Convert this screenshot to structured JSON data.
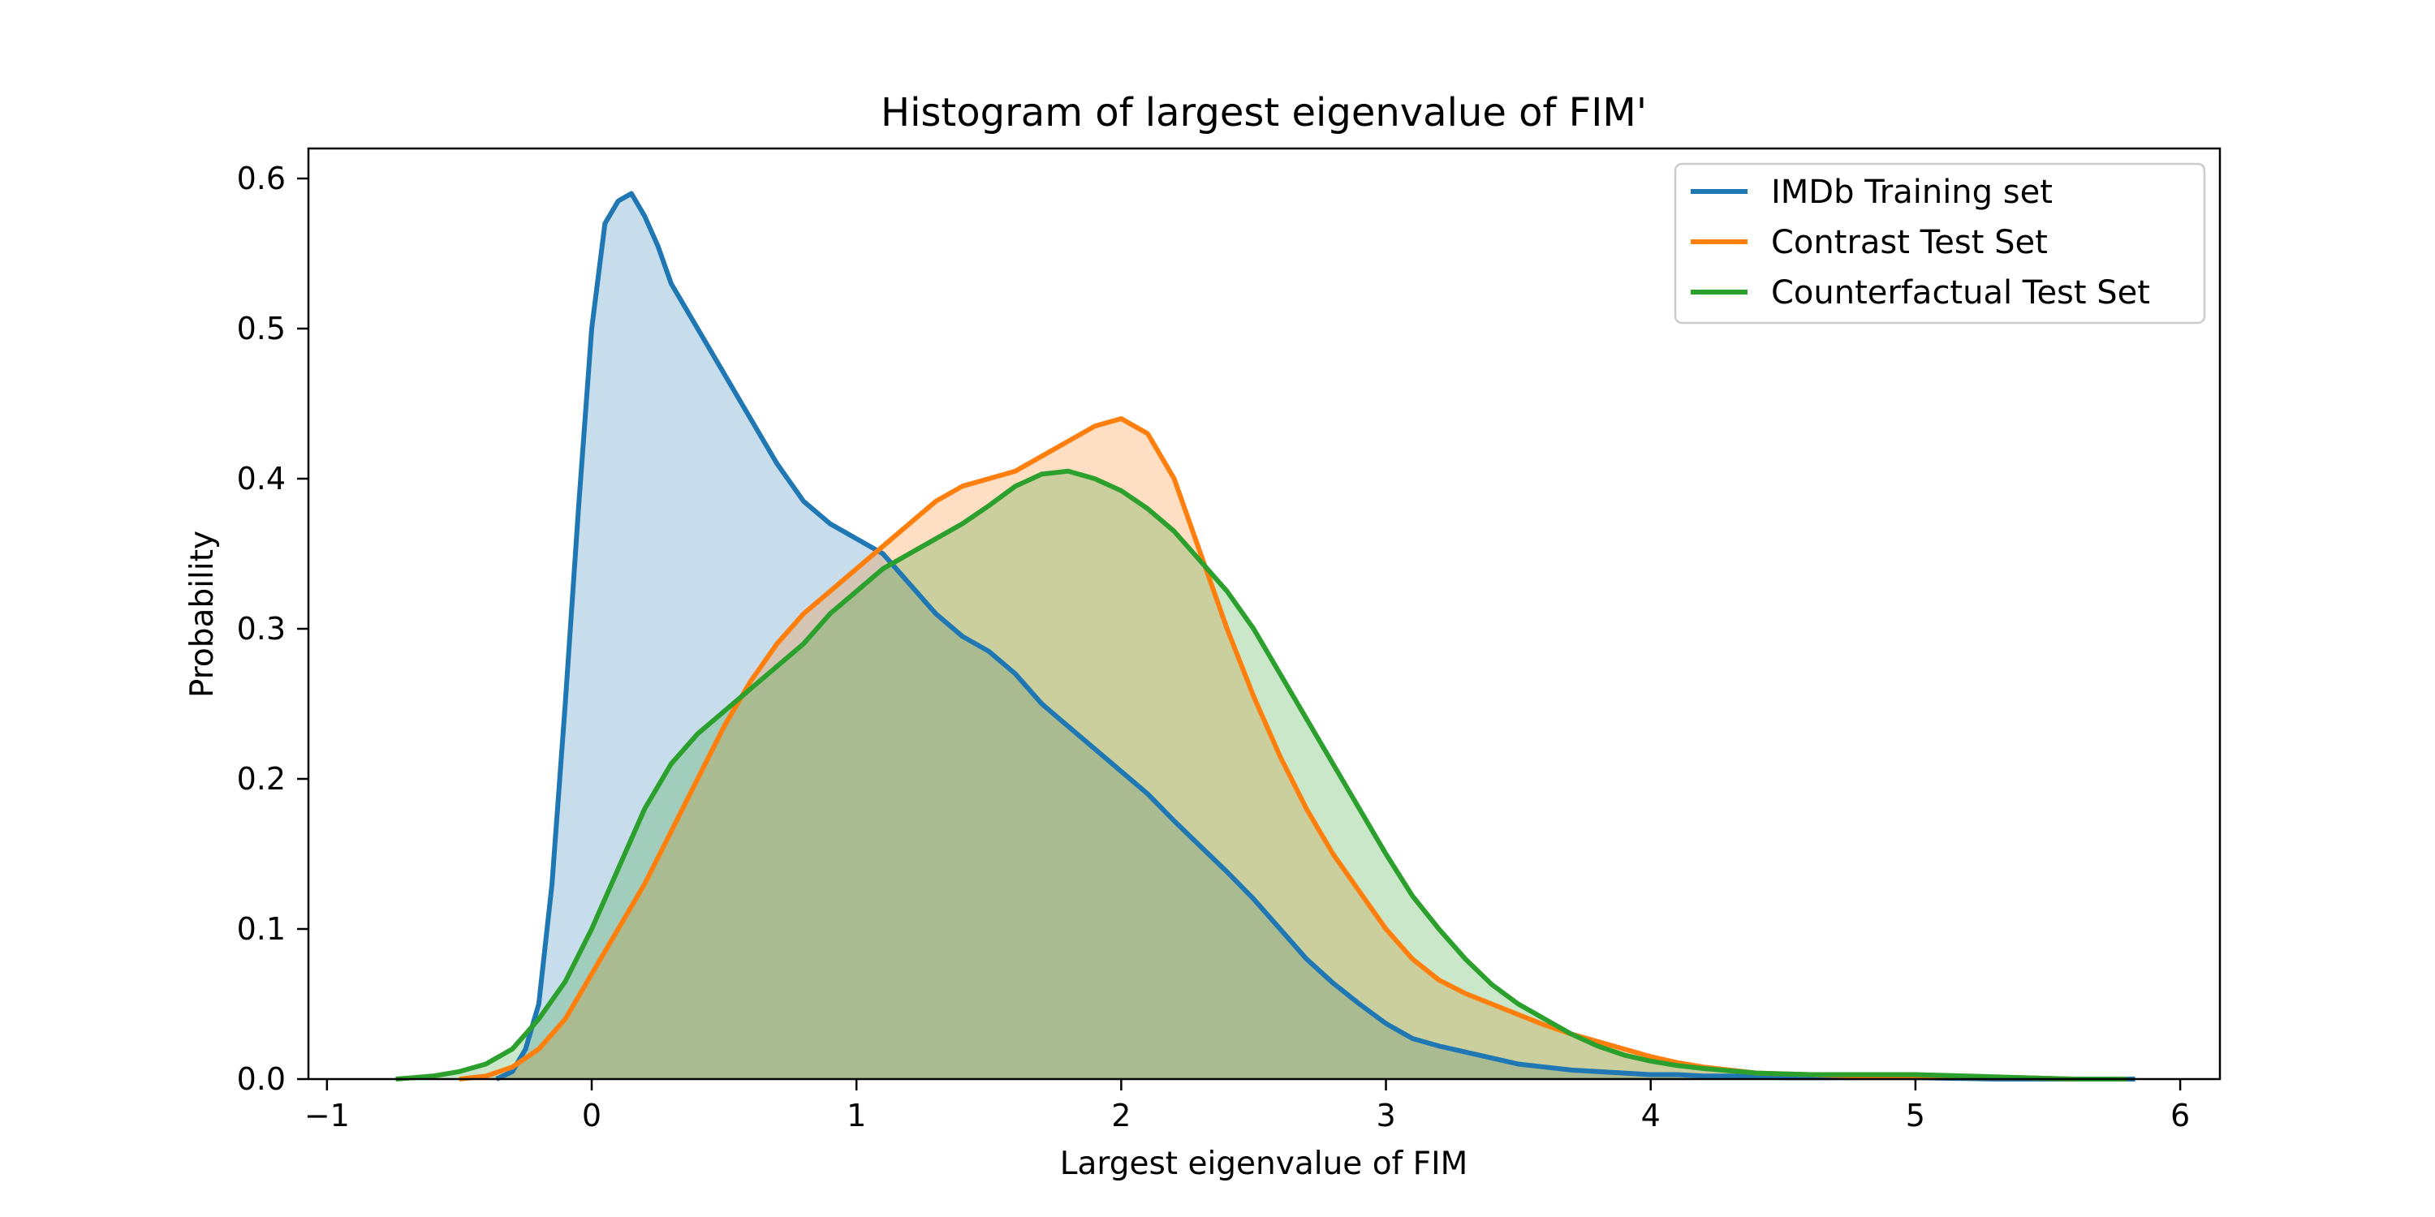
{
  "chart_data": {
    "type": "area",
    "title": "Histogram of largest eigenvalue of FIM'",
    "xlabel": "Largest eigenvalue of FIM",
    "ylabel": "Probability",
    "xlim": [
      -1.07,
      6.15
    ],
    "ylim": [
      0,
      0.62
    ],
    "xticks": [
      -1,
      0,
      1,
      2,
      3,
      4,
      5,
      6
    ],
    "xtick_labels": [
      "−1",
      "0",
      "1",
      "2",
      "3",
      "4",
      "5",
      "6"
    ],
    "yticks": [
      0.0,
      0.1,
      0.2,
      0.3,
      0.4,
      0.5,
      0.6
    ],
    "ytick_labels": [
      "0.0",
      "0.1",
      "0.2",
      "0.3",
      "0.4",
      "0.5",
      "0.6"
    ],
    "grid": false,
    "legend_position": "top-right",
    "series": [
      {
        "name": "IMDb Training set",
        "color": "#1f77b4",
        "x": [
          -0.36,
          -0.3,
          -0.25,
          -0.2,
          -0.15,
          -0.1,
          -0.05,
          0.0,
          0.05,
          0.1,
          0.15,
          0.2,
          0.25,
          0.3,
          0.4,
          0.5,
          0.6,
          0.7,
          0.8,
          0.9,
          1.0,
          1.1,
          1.2,
          1.3,
          1.4,
          1.5,
          1.6,
          1.7,
          1.8,
          1.9,
          2.0,
          2.1,
          2.2,
          2.3,
          2.4,
          2.5,
          2.6,
          2.7,
          2.8,
          2.9,
          3.0,
          3.1,
          3.2,
          3.3,
          3.4,
          3.5,
          3.6,
          3.7,
          3.8,
          3.9,
          4.0,
          4.1,
          4.2,
          4.3,
          4.5,
          4.8,
          5.0,
          5.3,
          5.6,
          5.83
        ],
        "y": [
          0.0,
          0.005,
          0.02,
          0.05,
          0.13,
          0.25,
          0.38,
          0.5,
          0.57,
          0.585,
          0.59,
          0.575,
          0.555,
          0.53,
          0.5,
          0.47,
          0.44,
          0.41,
          0.385,
          0.37,
          0.36,
          0.35,
          0.33,
          0.31,
          0.295,
          0.285,
          0.27,
          0.25,
          0.235,
          0.22,
          0.205,
          0.19,
          0.172,
          0.155,
          0.138,
          0.12,
          0.1,
          0.08,
          0.064,
          0.05,
          0.037,
          0.027,
          0.022,
          0.018,
          0.014,
          0.01,
          0.008,
          0.006,
          0.005,
          0.004,
          0.003,
          0.003,
          0.002,
          0.002,
          0.001,
          0.001,
          0.001,
          0.0,
          0.0,
          0.0
        ]
      },
      {
        "name": "Contrast Test Set",
        "color": "#ff7f0e",
        "x": [
          -0.5,
          -0.4,
          -0.3,
          -0.2,
          -0.1,
          0.0,
          0.1,
          0.2,
          0.3,
          0.4,
          0.5,
          0.6,
          0.7,
          0.8,
          0.9,
          1.0,
          1.1,
          1.2,
          1.3,
          1.4,
          1.5,
          1.6,
          1.7,
          1.8,
          1.9,
          2.0,
          2.1,
          2.2,
          2.3,
          2.4,
          2.5,
          2.6,
          2.7,
          2.8,
          2.9,
          3.0,
          3.1,
          3.2,
          3.3,
          3.4,
          3.5,
          3.6,
          3.7,
          3.8,
          3.9,
          4.0,
          4.1,
          4.2,
          4.4,
          4.6,
          4.8,
          5.0,
          5.2,
          5.4,
          5.6,
          5.8
        ],
        "y": [
          0.0,
          0.002,
          0.008,
          0.02,
          0.04,
          0.07,
          0.1,
          0.13,
          0.165,
          0.2,
          0.235,
          0.265,
          0.29,
          0.31,
          0.325,
          0.34,
          0.355,
          0.37,
          0.385,
          0.395,
          0.4,
          0.405,
          0.415,
          0.425,
          0.435,
          0.44,
          0.43,
          0.4,
          0.35,
          0.3,
          0.255,
          0.215,
          0.18,
          0.15,
          0.125,
          0.1,
          0.08,
          0.066,
          0.057,
          0.05,
          0.043,
          0.036,
          0.03,
          0.025,
          0.02,
          0.015,
          0.011,
          0.008,
          0.004,
          0.003,
          0.002,
          0.002,
          0.001,
          0.001,
          0.0,
          0.0
        ]
      },
      {
        "name": "Counterfactual Test Set",
        "color": "#2ca02c",
        "x": [
          -0.74,
          -0.6,
          -0.5,
          -0.4,
          -0.3,
          -0.2,
          -0.1,
          0.0,
          0.1,
          0.2,
          0.3,
          0.4,
          0.5,
          0.6,
          0.7,
          0.8,
          0.9,
          1.0,
          1.1,
          1.2,
          1.3,
          1.4,
          1.5,
          1.6,
          1.7,
          1.8,
          1.9,
          2.0,
          2.1,
          2.2,
          2.3,
          2.4,
          2.5,
          2.6,
          2.7,
          2.8,
          2.9,
          3.0,
          3.1,
          3.2,
          3.3,
          3.4,
          3.5,
          3.6,
          3.7,
          3.8,
          3.9,
          4.0,
          4.1,
          4.2,
          4.4,
          4.6,
          4.8,
          5.0,
          5.2,
          5.4,
          5.6,
          5.8
        ],
        "y": [
          0.0,
          0.002,
          0.005,
          0.01,
          0.02,
          0.04,
          0.065,
          0.1,
          0.14,
          0.18,
          0.21,
          0.23,
          0.245,
          0.26,
          0.275,
          0.29,
          0.31,
          0.325,
          0.34,
          0.35,
          0.36,
          0.37,
          0.382,
          0.395,
          0.403,
          0.405,
          0.4,
          0.392,
          0.38,
          0.365,
          0.345,
          0.325,
          0.3,
          0.27,
          0.24,
          0.21,
          0.18,
          0.15,
          0.122,
          0.1,
          0.08,
          0.063,
          0.05,
          0.04,
          0.03,
          0.022,
          0.016,
          0.012,
          0.009,
          0.007,
          0.004,
          0.003,
          0.003,
          0.003,
          0.002,
          0.001,
          0.0,
          0.0
        ]
      }
    ]
  }
}
